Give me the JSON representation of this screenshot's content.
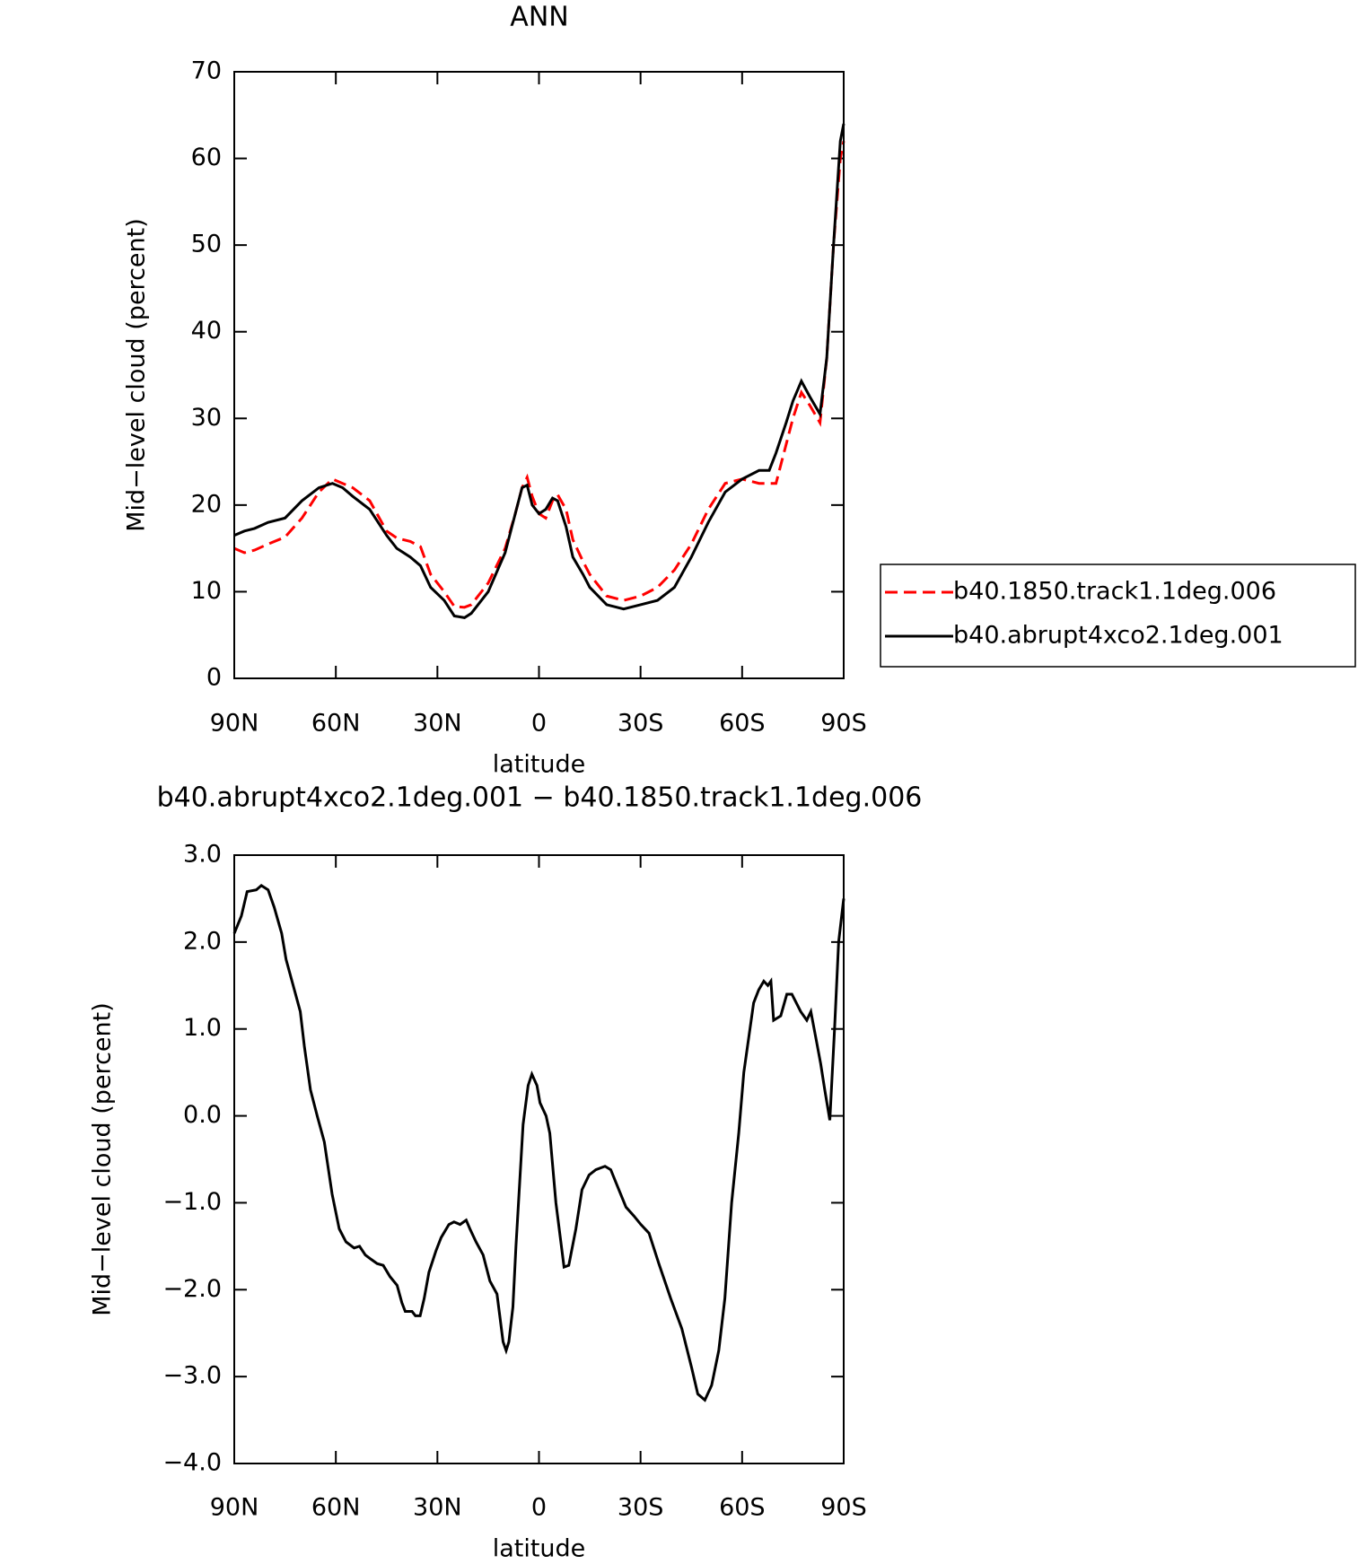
{
  "chart_data": [
    {
      "type": "line",
      "title": "ANN",
      "xlabel": "latitude",
      "ylabel": "Mid−level cloud (percent)",
      "xlim": [
        90,
        -90
      ],
      "ylim": [
        0,
        70
      ],
      "xticks": [
        {
          "value": 90,
          "label": "90N"
        },
        {
          "value": 60,
          "label": "60N"
        },
        {
          "value": 30,
          "label": "30N"
        },
        0,
        {
          "value": -30,
          "label": "30S"
        },
        {
          "value": -60,
          "label": "60S"
        },
        {
          "value": -90,
          "label": "90S"
        }
      ],
      "yticks": [
        0,
        10,
        20,
        30,
        40,
        50,
        60,
        70
      ],
      "legend": "right",
      "x": [
        90,
        87,
        84,
        80,
        75,
        70,
        65,
        61,
        58,
        55,
        50,
        45,
        42,
        38,
        35,
        32,
        28,
        25,
        22,
        20,
        15,
        10,
        7,
        5,
        3.5,
        2,
        0,
        -2,
        -4,
        -5.5,
        -8,
        -10,
        -13,
        -15,
        -20,
        -25,
        -30,
        -35,
        -40,
        -45,
        -50,
        -55,
        -60,
        -65,
        -68,
        -70,
        -73,
        -75,
        -77.5,
        -80,
        -83,
        -85,
        -87,
        -89,
        -90
      ],
      "series": [
        {
          "name": "b40.1850.track1.1deg.006",
          "color": "#ff0000",
          "style": "dashed",
          "values": [
            15,
            14.5,
            14.8,
            15.5,
            16.3,
            18.5,
            21.5,
            23,
            22.5,
            22,
            20.5,
            17,
            16.2,
            15.8,
            15.2,
            12,
            10,
            8.3,
            8.2,
            8.5,
            11,
            15,
            19,
            22,
            23.2,
            21,
            19,
            18.5,
            20.5,
            21.2,
            19.5,
            16,
            13.5,
            12,
            9.5,
            9,
            9.5,
            10.5,
            12.5,
            15.5,
            19.5,
            22.5,
            23,
            22.5,
            22.5,
            22.5,
            27,
            30,
            33,
            31.5,
            29.5,
            37,
            50,
            60,
            62
          ]
        },
        {
          "name": "b40.abrupt4xco2.1deg.001",
          "color": "#000000",
          "style": "solid",
          "values": [
            16.5,
            17,
            17.3,
            18,
            18.5,
            20.5,
            22,
            22.5,
            22,
            21,
            19.5,
            16.5,
            15,
            14,
            13,
            10.5,
            9,
            7.2,
            7,
            7.5,
            10,
            14.5,
            19,
            22,
            22.3,
            20,
            19,
            19.5,
            20.8,
            20.5,
            17.5,
            14,
            12,
            10.5,
            8.5,
            8,
            8.5,
            9,
            10.5,
            14,
            18,
            21.5,
            23,
            24,
            24,
            26,
            29.5,
            32,
            34.3,
            32.5,
            30.5,
            37,
            50,
            62,
            64
          ]
        }
      ]
    },
    {
      "type": "line",
      "title": "b40.abrupt4xco2.1deg.001 − b40.1850.track1.1deg.006",
      "xlabel": "latitude",
      "ylabel": "Mid−level cloud (percent)",
      "xlim": [
        90,
        -90
      ],
      "ylim": [
        -4,
        3
      ],
      "xticks": [
        {
          "value": 90,
          "label": "90N"
        },
        {
          "value": 60,
          "label": "60N"
        },
        {
          "value": 30,
          "label": "30N"
        },
        0,
        {
          "value": -30,
          "label": "30S"
        },
        {
          "value": -60,
          "label": "60S"
        },
        {
          "value": -90,
          "label": "90S"
        }
      ],
      "yticks": [
        {
          "value": 3,
          "label": "3.0"
        },
        {
          "value": 2,
          "label": "2.0"
        },
        {
          "value": 1,
          "label": "1.0"
        },
        {
          "value": 0,
          "label": "0.0"
        },
        {
          "value": -1,
          "label": "−1.0"
        },
        {
          "value": -2,
          "label": "−2.0"
        },
        {
          "value": -3,
          "label": "−3.0"
        },
        {
          "value": -4,
          "label": "−4.0"
        }
      ],
      "color": "#000000",
      "x": [
        90,
        87.9,
        86.2,
        83.5,
        82,
        80,
        78.2,
        76,
        74.7,
        72.6,
        70.5,
        69.3,
        67.5,
        65.5,
        63.4,
        61.1,
        59,
        57,
        54.6,
        53,
        51.3,
        49.6,
        47.8,
        46,
        44,
        41.9,
        40.5,
        39.5,
        37.5,
        36.5,
        35.1,
        33.9,
        32.5,
        30.4,
        28.9,
        26.6,
        25.1,
        23.3,
        21.5,
        20.4,
        18.6,
        16.5,
        14.5,
        12.4,
        10.6,
        9.7,
        8.9,
        7.7,
        6.8,
        4.7,
        3.2,
        2.1,
        0.6,
        -0.3,
        -2.1,
        -3.2,
        -5,
        -7.4,
        -8.8,
        -10.9,
        -12.7,
        -14.8,
        -16.8,
        -19.5,
        -21.2,
        -23.6,
        -25.7,
        -28,
        -30.1,
        -32.5,
        -35.4,
        -38.9,
        -42.2,
        -45.1,
        -46.9,
        -49,
        -51,
        -53.1,
        -54.9,
        -56.9,
        -59,
        -60.5,
        -63.4,
        -64.9,
        -66.4,
        -67.6,
        -68.5,
        -69.3,
        -71.4,
        -73.2,
        -74.7,
        -77.3,
        -79.1,
        -80.3,
        -82,
        -83.2,
        -84.4,
        -85.9,
        -87.3,
        -88.5,
        -90
      ],
      "values": [
        2.1,
        2.3,
        2.58,
        2.6,
        2.65,
        2.6,
        2.4,
        2.1,
        1.8,
        1.5,
        1.2,
        0.8,
        0.3,
        0.0,
        -0.3,
        -0.9,
        -1.3,
        -1.45,
        -1.52,
        -1.5,
        -1.6,
        -1.65,
        -1.7,
        -1.72,
        -1.85,
        -1.95,
        -2.15,
        -2.25,
        -2.25,
        -2.3,
        -2.3,
        -2.1,
        -1.8,
        -1.55,
        -1.4,
        -1.25,
        -1.22,
        -1.25,
        -1.2,
        -1.3,
        -1.45,
        -1.6,
        -1.9,
        -2.05,
        -2.6,
        -2.7,
        -2.6,
        -2.2,
        -1.5,
        -0.1,
        0.35,
        0.48,
        0.35,
        0.15,
        0.0,
        -0.2,
        -1.0,
        -1.74,
        -1.72,
        -1.3,
        -0.85,
        -0.68,
        -0.62,
        -0.58,
        -0.62,
        -0.85,
        -1.05,
        -1.15,
        -1.25,
        -1.35,
        -1.7,
        -2.1,
        -2.45,
        -2.9,
        -3.2,
        -3.27,
        -3.1,
        -2.7,
        -2.1,
        -1.0,
        -0.2,
        0.5,
        1.3,
        1.45,
        1.55,
        1.5,
        1.55,
        1.1,
        1.15,
        1.4,
        1.4,
        1.2,
        1.1,
        1.2,
        0.85,
        0.6,
        0.3,
        -0.05,
        1.0,
        2.0,
        2.5
      ]
    }
  ]
}
